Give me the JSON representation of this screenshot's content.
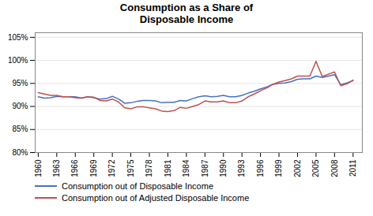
{
  "chart_data": {
    "type": "line",
    "title": "Consumption as a Share of\nDisposable Income",
    "x": [
      1960,
      1961,
      1962,
      1963,
      1964,
      1965,
      1966,
      1967,
      1968,
      1969,
      1970,
      1971,
      1972,
      1973,
      1974,
      1975,
      1976,
      1977,
      1978,
      1979,
      1980,
      1981,
      1982,
      1983,
      1984,
      1985,
      1986,
      1987,
      1988,
      1989,
      1990,
      1991,
      1992,
      1993,
      1994,
      1995,
      1996,
      1997,
      1998,
      1999,
      2000,
      2001,
      2002,
      2003,
      2004,
      2005,
      2006,
      2007,
      2008,
      2009,
      2010,
      2011
    ],
    "series": [
      {
        "name": "Consumption out of Disposable Income",
        "color": "#4472C4",
        "values": [
          0.921,
          0.918,
          0.919,
          0.922,
          0.921,
          0.921,
          0.921,
          0.918,
          0.921,
          0.919,
          0.916,
          0.917,
          0.922,
          0.916,
          0.907,
          0.908,
          0.911,
          0.913,
          0.913,
          0.912,
          0.908,
          0.909,
          0.909,
          0.913,
          0.912,
          0.917,
          0.921,
          0.923,
          0.921,
          0.922,
          0.924,
          0.921,
          0.921,
          0.924,
          0.929,
          0.933,
          0.938,
          0.942,
          0.948,
          0.95,
          0.951,
          0.954,
          0.959,
          0.96,
          0.96,
          0.966,
          0.963,
          0.966,
          0.969,
          0.947,
          0.951,
          0.956
        ]
      },
      {
        "name": "Consumption out of Adjusted Disposable Income",
        "color": "#C0504D",
        "values": [
          0.93,
          0.927,
          0.924,
          0.924,
          0.921,
          0.921,
          0.919,
          0.918,
          0.921,
          0.92,
          0.913,
          0.912,
          0.916,
          0.91,
          0.897,
          0.895,
          0.899,
          0.899,
          0.897,
          0.895,
          0.89,
          0.889,
          0.891,
          0.898,
          0.896,
          0.9,
          0.904,
          0.912,
          0.91,
          0.91,
          0.912,
          0.908,
          0.908,
          0.912,
          0.921,
          0.927,
          0.934,
          0.94,
          0.948,
          0.953,
          0.956,
          0.96,
          0.966,
          0.966,
          0.966,
          0.998,
          0.965,
          0.97,
          0.975,
          0.945,
          0.949,
          0.957
        ]
      }
    ],
    "xlim": [
      1959.5,
      2012.5
    ],
    "xticks": [
      1960,
      1963,
      1966,
      1969,
      1972,
      1975,
      1978,
      1981,
      1984,
      1987,
      1990,
      1993,
      1996,
      1999,
      2002,
      2005,
      2008,
      2011
    ],
    "ylim": [
      0.8,
      1.06
    ],
    "yticks": [
      {
        "value": 0.8,
        "label": "80%"
      },
      {
        "value": 0.85,
        "label": "85%"
      },
      {
        "value": 0.9,
        "label": "90%"
      },
      {
        "value": 0.95,
        "label": "95%"
      },
      {
        "value": 1.0,
        "label": "100%"
      },
      {
        "value": 1.05,
        "label": "105%"
      }
    ],
    "grid": "y",
    "legend": "bottom"
  }
}
